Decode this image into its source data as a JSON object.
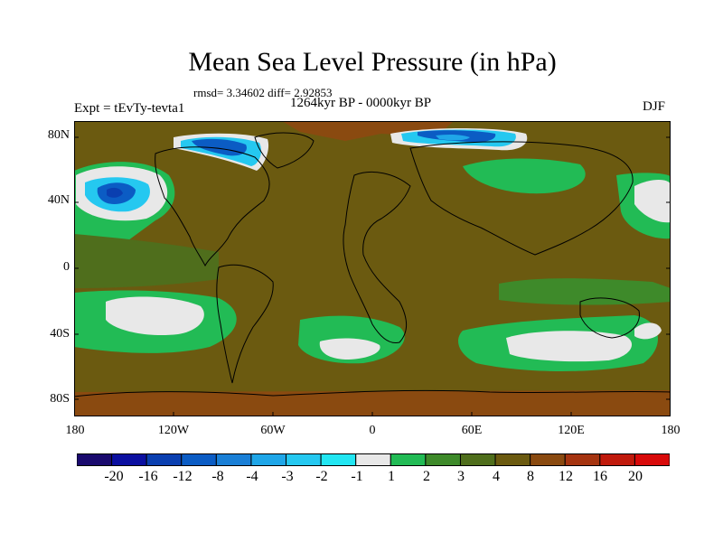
{
  "title": "Mean Sea Level Pressure (in hPa)",
  "stats": "rmsd= 3.34602  diff= 2.92853",
  "period": "1264kyr BP - 0000kyr BP",
  "experiment": "Expt = tEvTy-tevta1",
  "season": "DJF",
  "lat_ticks": [
    "80N",
    "40N",
    "0",
    "40S",
    "80S"
  ],
  "lon_ticks": [
    "180",
    "120W",
    "60W",
    "0",
    "60E",
    "120E",
    "180"
  ],
  "colorbar": {
    "labels": [
      "-20",
      "-16",
      "-12",
      "-8",
      "-4",
      "-3",
      "-2",
      "-1",
      "1",
      "2",
      "3",
      "4",
      "8",
      "12",
      "16",
      "20"
    ],
    "colors": [
      "#1a0a6e",
      "#0b0fa0",
      "#0a3fb0",
      "#0b5cc4",
      "#1a7fd6",
      "#1fa6e8",
      "#25c8f0",
      "#22e6f2",
      "#e8e8e8",
      "#22bb55",
      "#3e8a2a",
      "#4f6e1c",
      "#6b5a10",
      "#8a4a10",
      "#a53410",
      "#c01a0c",
      "#d80a0a"
    ]
  },
  "map_colors": {
    "background": "#6b5a10",
    "warm": "#8a4a10",
    "green": "#4f6e1c",
    "bright_green": "#22bb55",
    "mid_green": "#3e8a2a",
    "white": "#e8e8e8",
    "cyan": "#25c8f0",
    "light_blue": "#1fa6e8",
    "blue": "#0b5cc4",
    "dark_blue": "#0a3fb0",
    "coast": "#000000"
  }
}
